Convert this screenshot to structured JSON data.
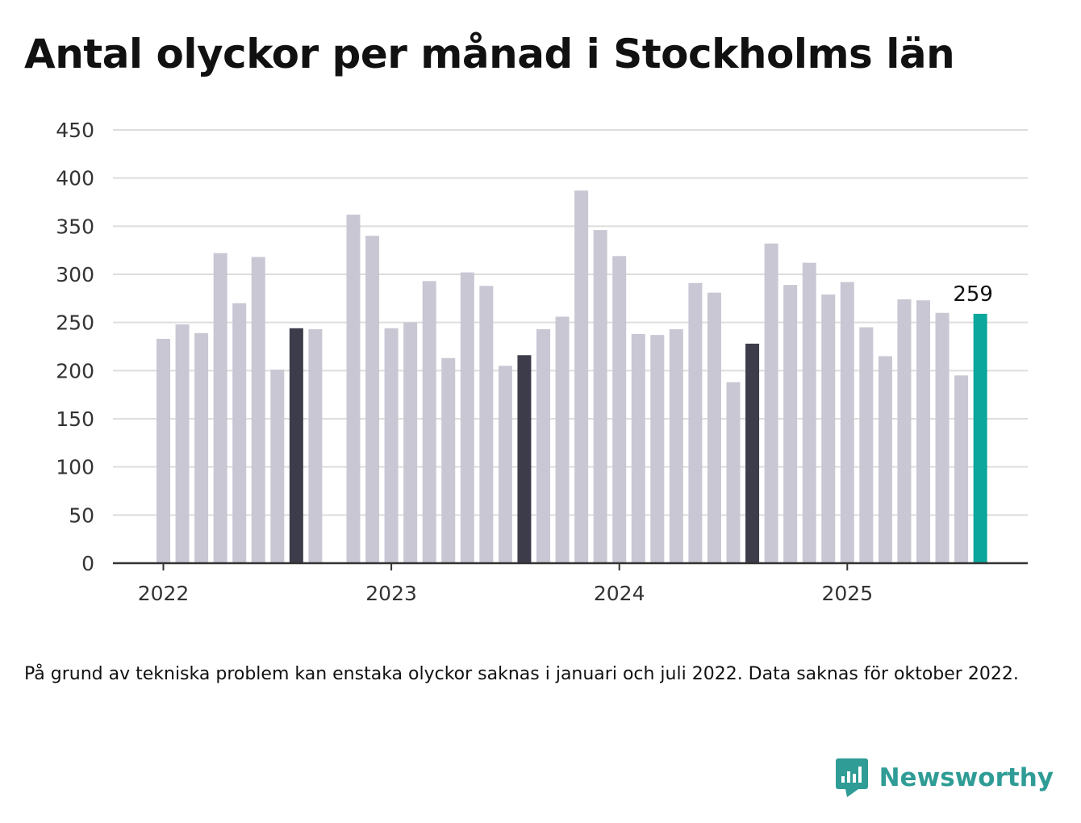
{
  "title": "Antal olyckor per månad i Stockholms län",
  "note": "På grund av tekniska problem kan enstaka olyckor saknas i januari och juli 2022. Data saknas för oktober 2022.",
  "brand": "Newsworthy",
  "colors": {
    "bar": "#c9c7d3",
    "highlight": "#3d3c4b",
    "latest": "#0ba69c",
    "grid": "#dddddd",
    "axis": "#333333",
    "brand": "#2f9c96"
  },
  "chart_data": {
    "type": "bar",
    "title": "Antal olyckor per månad i Stockholms län",
    "xlabel": "",
    "ylabel": "",
    "ylim": [
      0,
      450
    ],
    "yticks": [
      0,
      50,
      100,
      150,
      200,
      250,
      300,
      350,
      400,
      450
    ],
    "grid": true,
    "xtick_labels": [
      "2022",
      "2023",
      "2024",
      "2025"
    ],
    "categories": [
      "2022-01",
      "2022-02",
      "2022-03",
      "2022-04",
      "2022-05",
      "2022-06",
      "2022-07",
      "2022-08",
      "2022-09",
      "2022-10",
      "2022-11",
      "2022-12",
      "2023-01",
      "2023-02",
      "2023-03",
      "2023-04",
      "2023-05",
      "2023-06",
      "2023-07",
      "2023-08",
      "2023-09",
      "2023-10",
      "2023-11",
      "2023-12",
      "2024-01",
      "2024-02",
      "2024-03",
      "2024-04",
      "2024-05",
      "2024-06",
      "2024-07",
      "2024-08",
      "2024-09",
      "2024-10",
      "2024-11",
      "2024-12",
      "2025-01",
      "2025-02",
      "2025-03",
      "2025-04",
      "2025-05",
      "2025-06",
      "2025-07",
      "2025-08"
    ],
    "values": [
      233,
      248,
      239,
      322,
      270,
      318,
      201,
      244,
      243,
      null,
      362,
      340,
      244,
      250,
      293,
      213,
      302,
      288,
      205,
      216,
      243,
      256,
      387,
      346,
      319,
      238,
      237,
      243,
      291,
      281,
      188,
      228,
      332,
      289,
      312,
      279,
      292,
      245,
      215,
      274,
      273,
      260,
      195,
      259
    ],
    "highlighted": [
      "2022-08",
      "2023-08",
      "2024-08"
    ],
    "latest": "2025-08",
    "data_labels": [
      {
        "category": "2025-08",
        "text": "259"
      }
    ]
  }
}
